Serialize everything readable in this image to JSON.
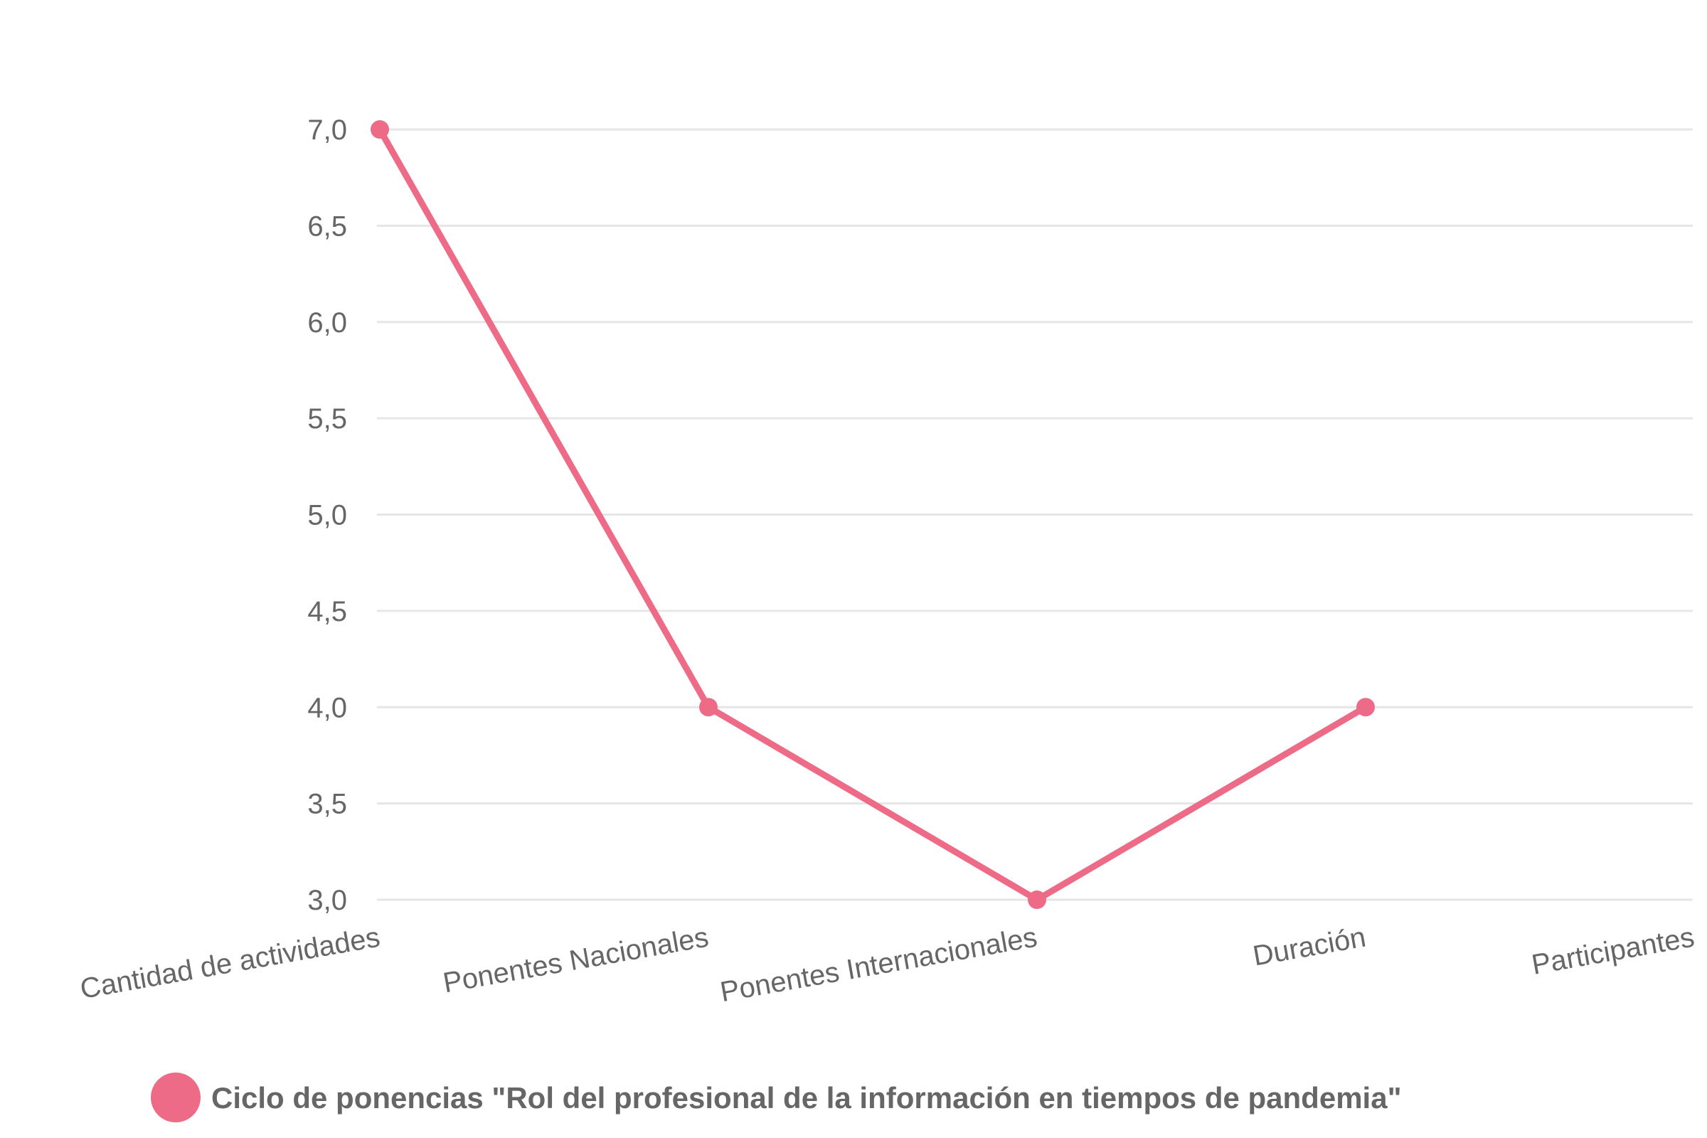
{
  "chart_data": {
    "type": "line",
    "categories": [
      "Cantidad de actividades",
      "Ponentes Nacionales",
      "Ponentes Internacionales",
      "Duración",
      "Participantes"
    ],
    "series": [
      {
        "name": "Ciclo de ponencias \"Rol del profesional de la información en tiempos de pandemia\"",
        "values": [
          7,
          4,
          3,
          4,
          null
        ],
        "color": "#ee6b87"
      }
    ],
    "yticks": [
      "3,0",
      "3,5",
      "4,0",
      "4,5",
      "5,0",
      "5,5",
      "6,0",
      "6,5",
      "7,0"
    ],
    "ylim": [
      3,
      7
    ],
    "grid": true,
    "legend": "bottom"
  }
}
